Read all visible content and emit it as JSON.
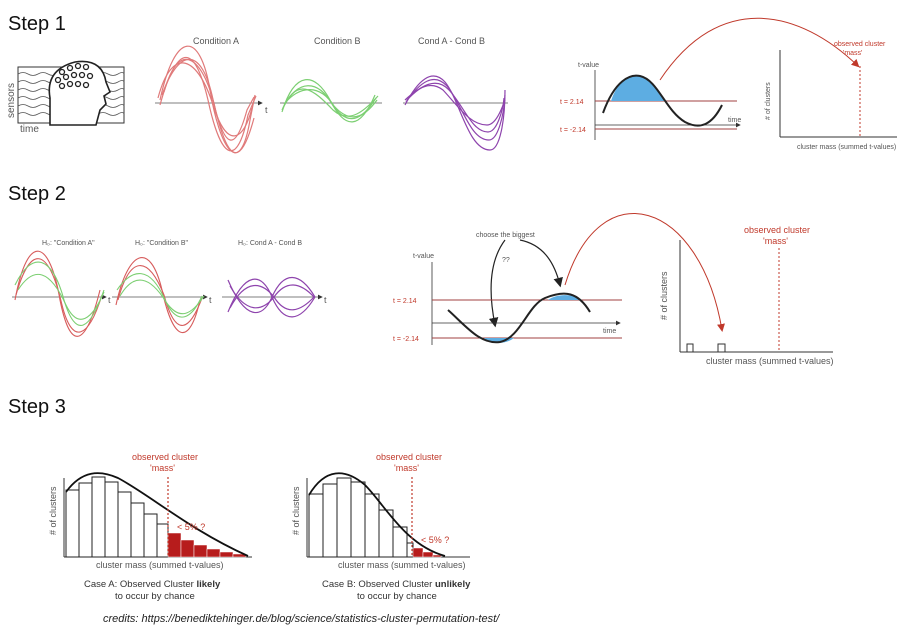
{
  "steps": {
    "s1": "Step 1",
    "s2": "Step 2",
    "s3": "Step 3"
  },
  "step1": {
    "sensors": "sensors",
    "time": "time",
    "cond_a": "Condition A",
    "cond_b": "Condition B",
    "cond_diff": "Cond A - Cond B",
    "t": "t",
    "tvalue": "t-value",
    "t_pos": "t = 2.14",
    "t_neg": "t = -2.14",
    "time_axis": "time",
    "y_axis": "# of clusters",
    "x_axis": "cluster mass (summed t-values)",
    "observed_1": "observed cluster",
    "observed_2": "'mass'"
  },
  "step2": {
    "h0_a": "H₀: \"Condition A\"",
    "h0_b": "H₀: \"Condition B\"",
    "h0_diff": "H₀: Cond A - Cond B",
    "t": "t",
    "tvalue": "t-value",
    "choose": "choose the biggest",
    "qq": "??",
    "t_pos": "t = 2.14",
    "t_neg": "t = -2.14",
    "time_axis": "time",
    "observed_1": "observed cluster",
    "observed_2": "'mass'",
    "y_axis": "# of clusters",
    "x_axis": "cluster mass (summed t-values)"
  },
  "step3": {
    "observed_1": "observed cluster",
    "observed_2": "'mass'",
    "y_axis": "# of clusters",
    "x_axis": "cluster mass (summed t-values)",
    "less5": "< 5% ?",
    "case_a_1": "Case A: Observed Cluster ",
    "case_a_bold": "likely",
    "case_a_2": "to occur by chance",
    "case_b_1": "Case B: Observed Cluster ",
    "case_b_bold": "unlikely",
    "case_b_2": "to occur by chance"
  },
  "credits": "credits: https://benediktehinger.de/blog/science/statistics-cluster-permutation-test/",
  "colors": {
    "cond_a": "#e07a7a",
    "cond_b": "#7ccf72",
    "diff": "#8e44ad",
    "red": "#c0392b",
    "cluster_fill": "#5dade2",
    "dark_red": "#b71c1c"
  }
}
